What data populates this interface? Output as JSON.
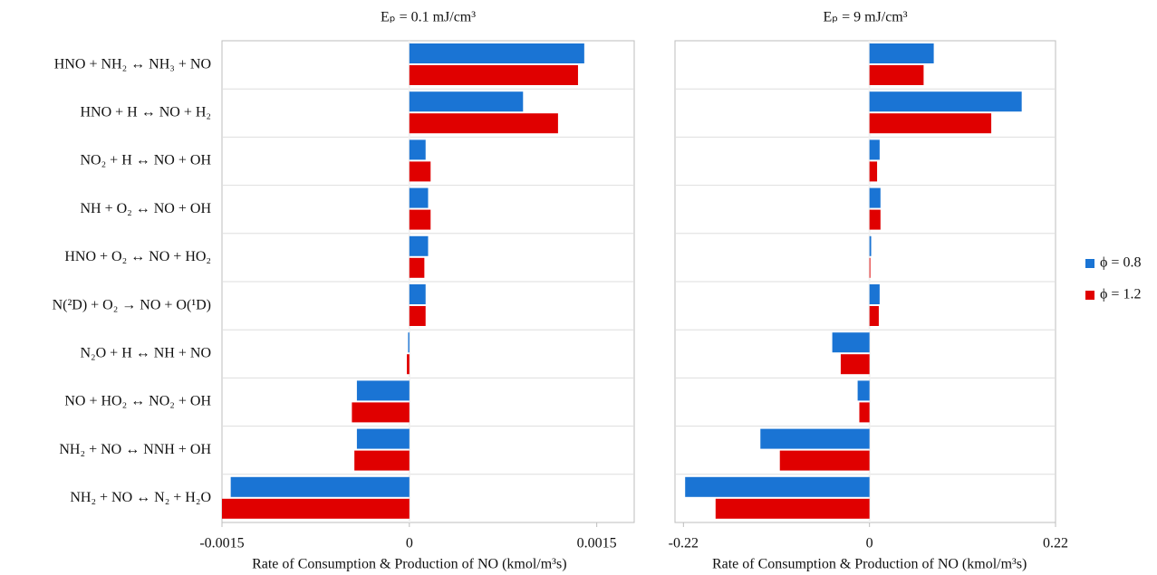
{
  "chart_data": [
    {
      "type": "bar",
      "orientation": "horizontal",
      "title": "Eₚ = 0.1 mJ/cm³",
      "x_label": "Rate of Consumption & Production of NO (kmol/m³s)",
      "categories": [
        "HNO + NH₂ ↔ NH₃ + NO",
        "HNO + H ↔ NO + H₂",
        "NO₂ + H ↔ NO + OH",
        "NH + O₂ ↔ NO + OH",
        "HNO + O₂ ↔ NO + HO₂",
        "N(²D) + O₂ → NO + O(¹D)",
        "N₂O + H ↔ NH + NO",
        "NO + HO₂ ↔ NO₂ + OH",
        "NH₂ + NO ↔ NNH + OH",
        "NH₂ + NO ↔ N₂ + H₂O"
      ],
      "series": [
        {
          "color": "#1a74d4",
          "values": [
            0.0014,
            0.00091,
            0.00013,
            0.00015,
            0.00015,
            0.00013,
            -1e-05,
            -0.00042,
            -0.00042,
            -0.00143
          ]
        },
        {
          "color": "#e00000",
          "values": [
            0.00135,
            0.00119,
            0.00017,
            0.00017,
            0.00012,
            0.00013,
            -2e-05,
            -0.00046,
            -0.00044,
            -0.0015
          ]
        }
      ],
      "xlim": [
        -0.0015,
        0.0018
      ],
      "xticks": [
        -0.0015,
        0,
        0.0015
      ]
    },
    {
      "type": "bar",
      "orientation": "horizontal",
      "title": "Eₚ = 9 mJ/cm³",
      "x_label": "Rate of Consumption & Production of NO (kmol/m³s)",
      "series": [
        {
          "name": "ϕ = 0.8",
          "color": "#1a74d4",
          "values": [
            0.076,
            0.18,
            0.012,
            0.013,
            0.002,
            0.012,
            -0.044,
            -0.014,
            -0.129,
            -0.218
          ]
        },
        {
          "name": "ϕ = 1.2",
          "color": "#e00000",
          "values": [
            0.064,
            0.144,
            0.009,
            0.013,
            0.001,
            0.011,
            -0.034,
            -0.012,
            -0.106,
            -0.182
          ]
        }
      ],
      "xlim": [
        -0.23,
        0.22
      ],
      "xticks": [
        -0.22,
        0,
        0.22
      ],
      "legend": "right"
    }
  ]
}
